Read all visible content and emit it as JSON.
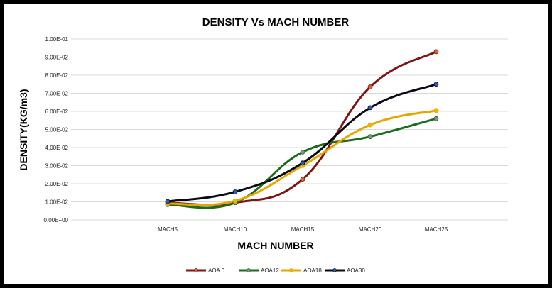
{
  "chart_data": {
    "type": "line",
    "title": "DENSITY Vs MACH NUMBER",
    "xlabel": "MACH NUMBER",
    "ylabel": "DENSITY(KG/m3)",
    "categories": [
      "MACH5",
      "MACH10",
      "MACH15",
      "MACH20",
      "MACH25"
    ],
    "ylim": [
      0,
      0.1
    ],
    "yticks": [
      0,
      0.01,
      0.02,
      0.03,
      0.04,
      0.05,
      0.06,
      0.07,
      0.08,
      0.09,
      0.1
    ],
    "ytick_labels": [
      "0.00E+00",
      "1.00E-02",
      "2.00E-02",
      "3.00E-02",
      "4.00E-02",
      "5.00E-02",
      "6.00E-02",
      "7.00E-02",
      "8.00E-02",
      "9.00E-02",
      "1.00E-01"
    ],
    "grid": true,
    "legend_position": "bottom",
    "series": [
      {
        "name": "AOA 0",
        "color": "#7b1616",
        "marker_color": "#d9622b",
        "values": [
          0.0095,
          0.0095,
          0.0225,
          0.0735,
          0.093
        ]
      },
      {
        "name": "AOA12",
        "color": "#1d6b1d",
        "marker_color": "#8c8c8c",
        "values": [
          0.0085,
          0.0095,
          0.0375,
          0.046,
          0.056
        ]
      },
      {
        "name": "AOA18",
        "color": "#e3a800",
        "marker_color": "#f0b400",
        "values": [
          0.009,
          0.0105,
          0.03,
          0.0525,
          0.0605
        ]
      },
      {
        "name": "AOA30",
        "color": "#0a0a14",
        "marker_color": "#2a5db0",
        "values": [
          0.0102,
          0.0155,
          0.0315,
          0.062,
          0.075
        ]
      }
    ]
  }
}
